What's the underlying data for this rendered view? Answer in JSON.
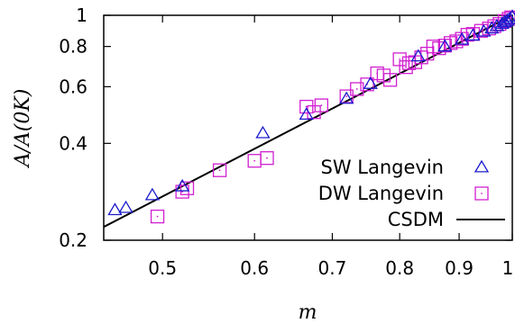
{
  "chart_data": {
    "type": "scatter",
    "xlabel": "m",
    "ylabel": "A/A(0K)",
    "x_scale": "log",
    "y_scale": "log",
    "xlim": [
      0.445,
      1.0
    ],
    "ylim": [
      0.2,
      1.0
    ],
    "x_ticks": [
      {
        "value": 0.5,
        "label": "0.5"
      },
      {
        "value": 0.6,
        "label": "0.6"
      },
      {
        "value": 0.7,
        "label": "0.7"
      },
      {
        "value": 0.8,
        "label": "0.8"
      },
      {
        "value": 0.9,
        "label": "0.9"
      },
      {
        "value": 1.0,
        "label": "1"
      }
    ],
    "y_ticks": [
      {
        "value": 0.2,
        "label": "0.2"
      },
      {
        "value": 0.4,
        "label": "0.4"
      },
      {
        "value": 0.6,
        "label": "0.6"
      },
      {
        "value": 0.8,
        "label": "0.8"
      },
      {
        "value": 1.0,
        "label": "1"
      }
    ],
    "grid": false,
    "legend_position": "bottom-right",
    "colors": {
      "sw": "#1a1acc",
      "dw": "#d11fd1",
      "csdm": "#000000"
    },
    "series": [
      {
        "name": "SW Langevin",
        "marker": "triangle",
        "points": [
          [
            0.455,
            0.248
          ],
          [
            0.465,
            0.252
          ],
          [
            0.49,
            0.276
          ],
          [
            0.52,
            0.294
          ],
          [
            0.61,
            0.43
          ],
          [
            0.665,
            0.491
          ],
          [
            0.72,
            0.55
          ],
          [
            0.755,
            0.612
          ],
          [
            0.83,
            0.745
          ],
          [
            0.875,
            0.8
          ],
          [
            0.905,
            0.84
          ],
          [
            0.925,
            0.865
          ],
          [
            0.945,
            0.89
          ],
          [
            0.96,
            0.91
          ],
          [
            0.97,
            0.925
          ],
          [
            0.98,
            0.94
          ],
          [
            0.985,
            0.952
          ],
          [
            0.99,
            0.962
          ],
          [
            0.995,
            0.975
          ],
          [
            1.0,
            0.99
          ]
        ]
      },
      {
        "name": "DW Langevin",
        "marker": "square-dot",
        "points": [
          [
            0.495,
            0.237
          ],
          [
            0.52,
            0.283
          ],
          [
            0.525,
            0.29
          ],
          [
            0.56,
            0.33
          ],
          [
            0.6,
            0.353
          ],
          [
            0.615,
            0.36
          ],
          [
            0.665,
            0.52
          ],
          [
            0.675,
            0.5
          ],
          [
            0.685,
            0.525
          ],
          [
            0.72,
            0.56
          ],
          [
            0.735,
            0.59
          ],
          [
            0.75,
            0.61
          ],
          [
            0.765,
            0.66
          ],
          [
            0.775,
            0.65
          ],
          [
            0.785,
            0.63
          ],
          [
            0.8,
            0.73
          ],
          [
            0.81,
            0.69
          ],
          [
            0.815,
            0.71
          ],
          [
            0.825,
            0.715
          ],
          [
            0.835,
            0.74
          ],
          [
            0.845,
            0.76
          ],
          [
            0.855,
            0.8
          ],
          [
            0.865,
            0.79
          ],
          [
            0.875,
            0.805
          ],
          [
            0.885,
            0.82
          ],
          [
            0.895,
            0.83
          ],
          [
            0.905,
            0.845
          ],
          [
            0.915,
            0.87
          ],
          [
            0.925,
            0.875
          ],
          [
            0.94,
            0.895
          ],
          [
            0.955,
            0.91
          ],
          [
            0.965,
            0.925
          ],
          [
            0.975,
            0.94
          ],
          [
            0.985,
            0.96
          ],
          [
            0.993,
            0.975
          ],
          [
            0.998,
            0.985
          ]
        ]
      },
      {
        "name": "CSDM",
        "marker": "line",
        "points": [
          [
            0.445,
            0.22
          ],
          [
            1.0,
            1.0
          ]
        ]
      }
    ]
  }
}
